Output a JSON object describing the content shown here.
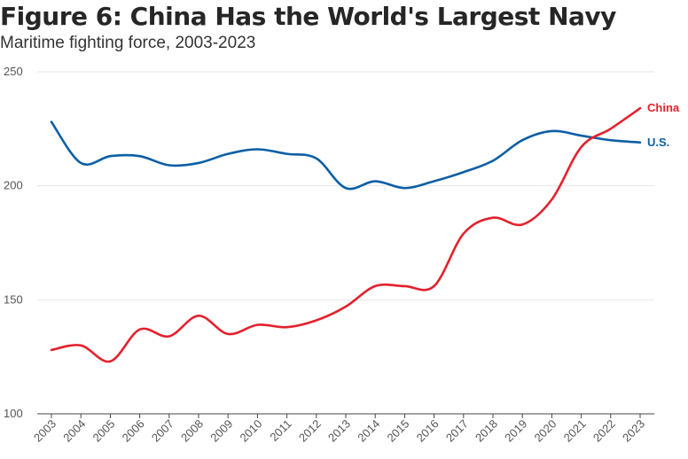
{
  "header": {
    "title": "Figure 6: China Has the World's Largest Navy",
    "subtitle": "Maritime fighting force, 2003-2023"
  },
  "chart_data": {
    "type": "line",
    "title": "Figure 6: China Has the World's Largest Navy",
    "subtitle": "Maritime fighting force, 2003-2023",
    "xlabel": "",
    "ylabel": "",
    "ylim": [
      100,
      250
    ],
    "yticks": [
      "100",
      "150",
      "200",
      "250"
    ],
    "categories": [
      "2003",
      "2004",
      "2005",
      "2006",
      "2007",
      "2008",
      "2009",
      "2010",
      "2011",
      "2012",
      "2013",
      "2014",
      "2015",
      "2016",
      "2017",
      "2018",
      "2019",
      "2020",
      "2021",
      "2022",
      "2023"
    ],
    "series": [
      {
        "name": "U.S.",
        "color": "#0b5fa5",
        "values": [
          228,
          210,
          213,
          213,
          209,
          210,
          214,
          216,
          214,
          212,
          199,
          202,
          199,
          202,
          206,
          211,
          220,
          224,
          222,
          220,
          219
        ]
      },
      {
        "name": "China",
        "color": "#e3212d",
        "values": [
          128,
          130,
          123,
          137,
          134,
          143,
          135,
          139,
          138,
          141,
          147,
          156,
          156,
          156,
          179,
          186,
          183,
          194,
          217,
          225,
          234
        ]
      }
    ],
    "grid": true,
    "legend": "inline-right"
  }
}
